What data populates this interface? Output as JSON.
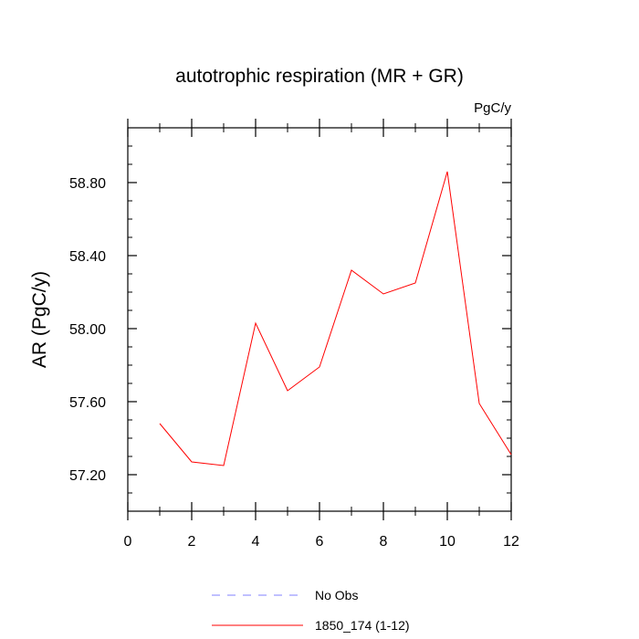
{
  "chart_data": {
    "type": "line",
    "title": "autotrophic respiration (MR + GR)",
    "units": "PgC/y",
    "ylabel": "AR  (PgC/y)",
    "xlabel": "",
    "xlim": [
      0,
      12
    ],
    "ylim": [
      57.0,
      59.1
    ],
    "x_ticks": [
      0,
      2,
      4,
      6,
      8,
      10,
      12
    ],
    "x_tick_labels": [
      "0",
      "2",
      "4",
      "6",
      "8",
      "10",
      "12"
    ],
    "y_ticks": [
      57.2,
      57.6,
      58.0,
      58.4,
      58.8
    ],
    "y_tick_labels": [
      "57.20",
      "57.60",
      "58.00",
      "58.40",
      "58.80"
    ],
    "grid": false,
    "legend_position": "bottom",
    "series": [
      {
        "name": "1850_174 (1-12)",
        "color": "#ff0000",
        "style": "solid",
        "x": [
          1,
          2,
          3,
          4,
          5,
          6,
          7,
          8,
          9,
          10,
          11,
          12
        ],
        "values": [
          57.48,
          57.27,
          57.25,
          58.03,
          57.66,
          57.79,
          58.32,
          58.19,
          58.25,
          58.86,
          57.59,
          57.31
        ]
      }
    ],
    "legend": [
      {
        "label": "No Obs",
        "color": "#8080ff",
        "style": "dashed"
      },
      {
        "label": "1850_174 (1-12)",
        "color": "#ff0000",
        "style": "solid"
      }
    ]
  }
}
